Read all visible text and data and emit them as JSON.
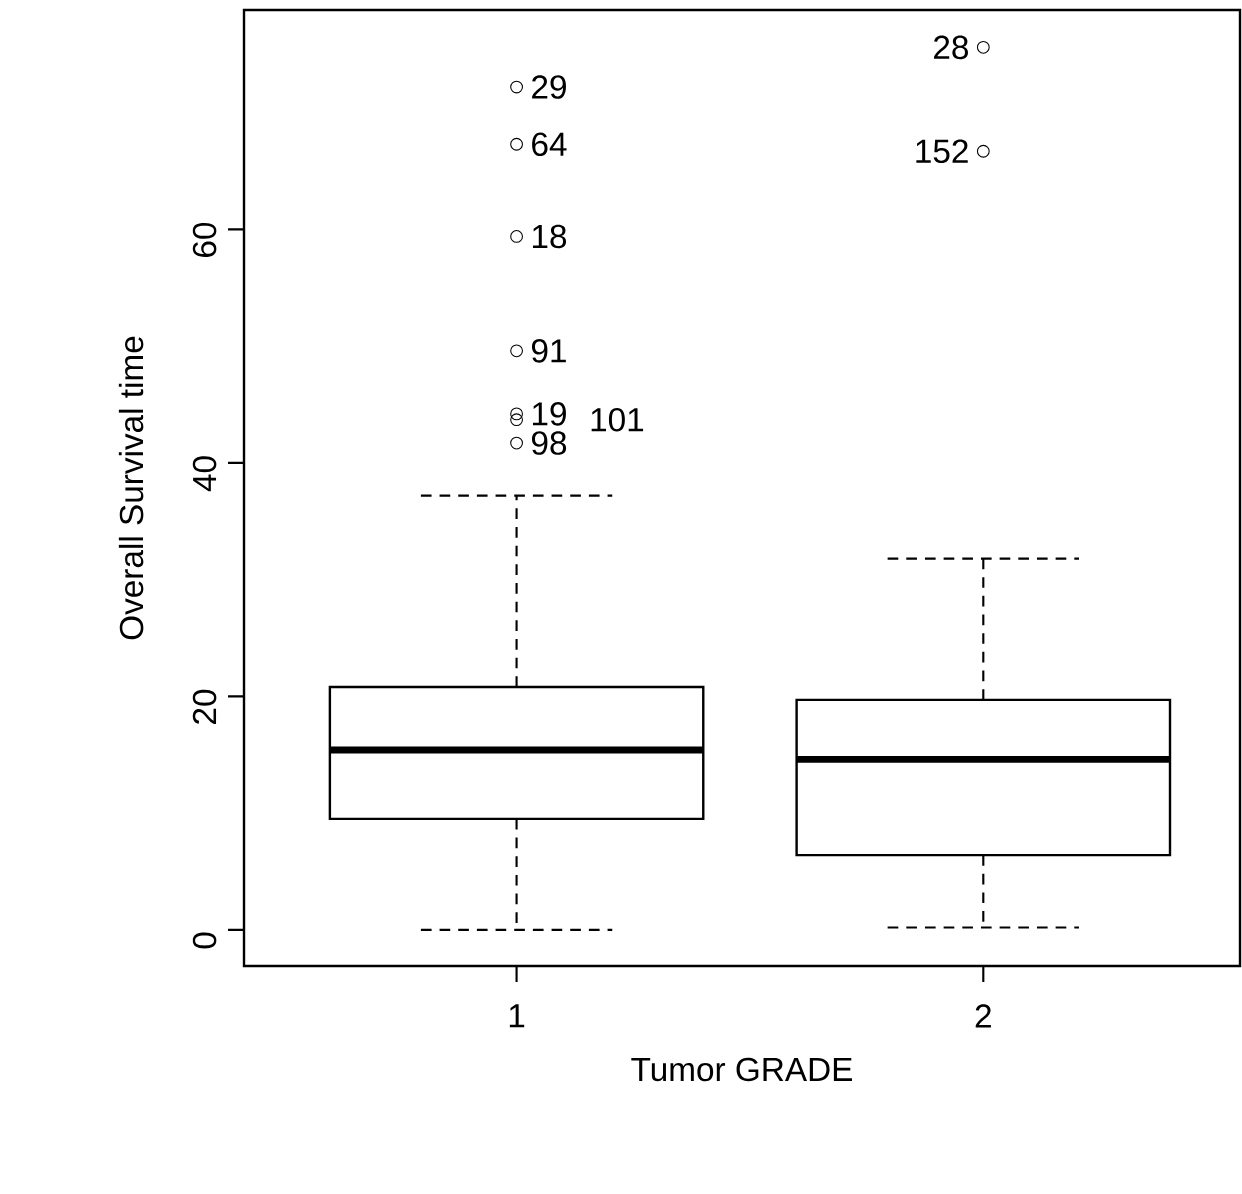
{
  "chart_data": {
    "type": "box",
    "xlabel": "Tumor GRADE",
    "ylabel": "Overall Survival time",
    "categories": [
      "1",
      "2"
    ],
    "boxes": [
      {
        "low": 0,
        "q1": 9.5,
        "median": 15.4,
        "q3": 20.8,
        "high": 37.2,
        "outliers": [
          72.2,
          67.3,
          59.4,
          49.6,
          44.2,
          43.7,
          41.7
        ]
      },
      {
        "low": 0.2,
        "q1": 6.4,
        "median": 14.6,
        "q3": 19.7,
        "high": 31.8,
        "outliers": [
          75.6,
          66.7
        ]
      }
    ],
    "color": "#000000",
    "marker": "circle",
    "ylim": [
      -3.1,
      78.8
    ],
    "yticks": [
      0,
      20,
      40,
      60
    ],
    "annotations": [
      "29",
      "64",
      "18",
      "91",
      "19",
      "101",
      "98",
      "28",
      "152"
    ]
  }
}
